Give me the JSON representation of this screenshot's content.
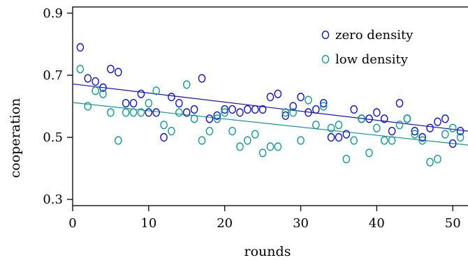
{
  "chart_data": {
    "type": "scatter",
    "xlabel": "rounds",
    "ylabel": "cooperation",
    "xlim": [
      0,
      52
    ],
    "ylim": [
      0.28,
      0.92
    ],
    "x_ticks": [
      0,
      10,
      20,
      30,
      40,
      50
    ],
    "y_ticks": [
      0.3,
      0.5,
      0.7,
      0.9
    ],
    "x_tick_labels": [
      "0",
      "10",
      "20",
      "30",
      "40",
      "50"
    ],
    "y_tick_labels": [
      "0.3",
      "0.5",
      "0.7",
      "0.9"
    ],
    "grid": false,
    "legend_position": "top-right",
    "series": [
      {
        "name": "zero density",
        "color": "#1010c8",
        "marker": "open-circle",
        "trend": [
          [
            0,
            0.672
          ],
          [
            52,
            0.52
          ]
        ],
        "points": [
          [
            1,
            0.79
          ],
          [
            2,
            0.69
          ],
          [
            3,
            0.68
          ],
          [
            4,
            0.66
          ],
          [
            5,
            0.72
          ],
          [
            6,
            0.71
          ],
          [
            7,
            0.61
          ],
          [
            8,
            0.61
          ],
          [
            9,
            0.64
          ],
          [
            10,
            0.58
          ],
          [
            11,
            0.58
          ],
          [
            12,
            0.5
          ],
          [
            13,
            0.63
          ],
          [
            14,
            0.61
          ],
          [
            15,
            0.58
          ],
          [
            16,
            0.59
          ],
          [
            17,
            0.69
          ],
          [
            18,
            0.56
          ],
          [
            19,
            0.57
          ],
          [
            20,
            0.59
          ],
          [
            21,
            0.59
          ],
          [
            22,
            0.58
          ],
          [
            23,
            0.59
          ],
          [
            24,
            0.59
          ],
          [
            25,
            0.59
          ],
          [
            26,
            0.63
          ],
          [
            27,
            0.64
          ],
          [
            28,
            0.57
          ],
          [
            29,
            0.6
          ],
          [
            30,
            0.63
          ],
          [
            31,
            0.58
          ],
          [
            32,
            0.59
          ],
          [
            33,
            0.61
          ],
          [
            34,
            0.5
          ],
          [
            35,
            0.5
          ],
          [
            36,
            0.51
          ],
          [
            37,
            0.59
          ],
          [
            38,
            0.56
          ],
          [
            39,
            0.56
          ],
          [
            40,
            0.58
          ],
          [
            41,
            0.56
          ],
          [
            42,
            0.52
          ],
          [
            43,
            0.61
          ],
          [
            44,
            0.56
          ],
          [
            45,
            0.52
          ],
          [
            46,
            0.5
          ],
          [
            47,
            0.53
          ],
          [
            48,
            0.55
          ],
          [
            49,
            0.56
          ],
          [
            50,
            0.48
          ],
          [
            51,
            0.52
          ]
        ]
      },
      {
        "name": "low density",
        "color": "#109a8c",
        "marker": "open-circle",
        "trend": [
          [
            0,
            0.612
          ],
          [
            52,
            0.475
          ]
        ],
        "points": [
          [
            1,
            0.72
          ],
          [
            2,
            0.6
          ],
          [
            3,
            0.65
          ],
          [
            4,
            0.64
          ],
          [
            5,
            0.58
          ],
          [
            6,
            0.49
          ],
          [
            7,
            0.58
          ],
          [
            8,
            0.58
          ],
          [
            9,
            0.58
          ],
          [
            10,
            0.61
          ],
          [
            11,
            0.65
          ],
          [
            12,
            0.54
          ],
          [
            13,
            0.52
          ],
          [
            14,
            0.58
          ],
          [
            15,
            0.67
          ],
          [
            16,
            0.56
          ],
          [
            17,
            0.49
          ],
          [
            18,
            0.52
          ],
          [
            19,
            0.56
          ],
          [
            20,
            0.58
          ],
          [
            21,
            0.52
          ],
          [
            22,
            0.47
          ],
          [
            23,
            0.49
          ],
          [
            24,
            0.51
          ],
          [
            25,
            0.45
          ],
          [
            26,
            0.47
          ],
          [
            27,
            0.47
          ],
          [
            28,
            0.58
          ],
          [
            29,
            0.58
          ],
          [
            30,
            0.49
          ],
          [
            31,
            0.62
          ],
          [
            32,
            0.54
          ],
          [
            33,
            0.6
          ],
          [
            34,
            0.53
          ],
          [
            35,
            0.54
          ],
          [
            36,
            0.43
          ],
          [
            37,
            0.49
          ],
          [
            38,
            0.56
          ],
          [
            39,
            0.45
          ],
          [
            40,
            0.53
          ],
          [
            41,
            0.49
          ],
          [
            42,
            0.49
          ],
          [
            43,
            0.54
          ],
          [
            44,
            0.56
          ],
          [
            45,
            0.51
          ],
          [
            46,
            0.49
          ],
          [
            47,
            0.42
          ],
          [
            48,
            0.43
          ],
          [
            49,
            0.51
          ],
          [
            50,
            0.53
          ],
          [
            51,
            0.5
          ]
        ]
      }
    ]
  }
}
